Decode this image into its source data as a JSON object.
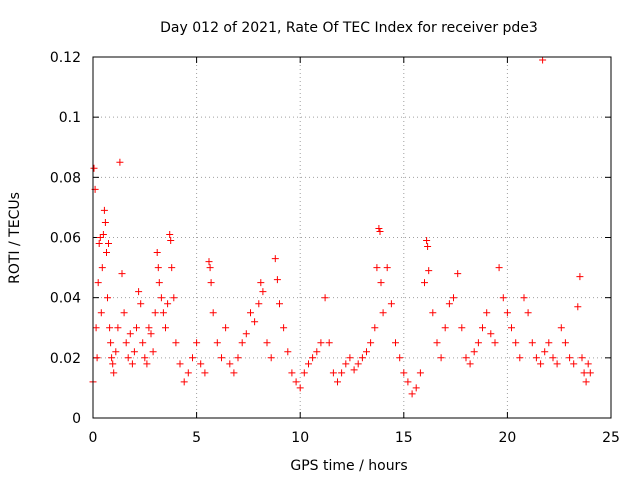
{
  "chart_data": {
    "type": "scatter",
    "title": "Day 012 of 2021, Rate Of TEC Index for receiver pde3",
    "xlabel": "GPS time / hours",
    "ylabel": "ROTI / TECUs",
    "xlim": [
      0,
      25
    ],
    "ylim": [
      0,
      0.12
    ],
    "xticks": [
      0,
      5,
      10,
      15,
      20,
      25
    ],
    "xtick_labels": [
      "0",
      "5",
      "10",
      "15",
      "20",
      "25"
    ],
    "yticks": [
      0,
      0.02,
      0.04,
      0.06,
      0.08,
      0.1,
      0.12
    ],
    "ytick_labels": [
      "0",
      "0.02",
      "0.04",
      "0.06",
      "0.08",
      "0.1",
      "0.12"
    ],
    "grid": true,
    "marker": "+",
    "color": "#ff0000",
    "legend": "none",
    "points": [
      [
        0.0,
        0.012
      ],
      [
        0.05,
        0.083
      ],
      [
        0.1,
        0.076
      ],
      [
        0.15,
        0.03
      ],
      [
        0.2,
        0.02
      ],
      [
        0.25,
        0.045
      ],
      [
        0.3,
        0.058
      ],
      [
        0.35,
        0.06
      ],
      [
        0.4,
        0.035
      ],
      [
        0.45,
        0.05
      ],
      [
        0.5,
        0.061
      ],
      [
        0.55,
        0.069
      ],
      [
        0.6,
        0.065
      ],
      [
        0.65,
        0.055
      ],
      [
        0.7,
        0.04
      ],
      [
        0.75,
        0.058
      ],
      [
        0.8,
        0.03
      ],
      [
        0.85,
        0.025
      ],
      [
        0.9,
        0.02
      ],
      [
        0.95,
        0.018
      ],
      [
        1.0,
        0.015
      ],
      [
        1.1,
        0.022
      ],
      [
        1.2,
        0.03
      ],
      [
        1.3,
        0.085
      ],
      [
        1.4,
        0.048
      ],
      [
        1.5,
        0.035
      ],
      [
        1.6,
        0.025
      ],
      [
        1.7,
        0.02
      ],
      [
        1.8,
        0.028
      ],
      [
        1.9,
        0.018
      ],
      [
        2.0,
        0.022
      ],
      [
        2.1,
        0.03
      ],
      [
        2.2,
        0.042
      ],
      [
        2.3,
        0.038
      ],
      [
        2.4,
        0.025
      ],
      [
        2.5,
        0.02
      ],
      [
        2.6,
        0.018
      ],
      [
        2.7,
        0.03
      ],
      [
        2.8,
        0.028
      ],
      [
        2.9,
        0.022
      ],
      [
        3.0,
        0.035
      ],
      [
        3.1,
        0.055
      ],
      [
        3.15,
        0.05
      ],
      [
        3.2,
        0.045
      ],
      [
        3.3,
        0.04
      ],
      [
        3.4,
        0.035
      ],
      [
        3.5,
        0.03
      ],
      [
        3.6,
        0.038
      ],
      [
        3.7,
        0.061
      ],
      [
        3.75,
        0.059
      ],
      [
        3.8,
        0.05
      ],
      [
        3.9,
        0.04
      ],
      [
        4.0,
        0.025
      ],
      [
        4.2,
        0.018
      ],
      [
        4.4,
        0.012
      ],
      [
        4.6,
        0.015
      ],
      [
        4.8,
        0.02
      ],
      [
        5.0,
        0.025
      ],
      [
        5.2,
        0.018
      ],
      [
        5.4,
        0.015
      ],
      [
        5.6,
        0.052
      ],
      [
        5.65,
        0.05
      ],
      [
        5.7,
        0.045
      ],
      [
        5.8,
        0.035
      ],
      [
        6.0,
        0.025
      ],
      [
        6.2,
        0.02
      ],
      [
        6.4,
        0.03
      ],
      [
        6.6,
        0.018
      ],
      [
        6.8,
        0.015
      ],
      [
        7.0,
        0.02
      ],
      [
        7.2,
        0.025
      ],
      [
        7.4,
        0.028
      ],
      [
        7.6,
        0.035
      ],
      [
        7.8,
        0.032
      ],
      [
        8.0,
        0.038
      ],
      [
        8.1,
        0.045
      ],
      [
        8.2,
        0.042
      ],
      [
        8.4,
        0.025
      ],
      [
        8.6,
        0.02
      ],
      [
        8.8,
        0.053
      ],
      [
        8.9,
        0.046
      ],
      [
        9.0,
        0.038
      ],
      [
        9.2,
        0.03
      ],
      [
        9.4,
        0.022
      ],
      [
        9.6,
        0.015
      ],
      [
        9.8,
        0.012
      ],
      [
        10.0,
        0.01
      ],
      [
        10.2,
        0.015
      ],
      [
        10.4,
        0.018
      ],
      [
        10.6,
        0.02
      ],
      [
        10.8,
        0.022
      ],
      [
        11.0,
        0.025
      ],
      [
        11.2,
        0.04
      ],
      [
        11.4,
        0.025
      ],
      [
        11.6,
        0.015
      ],
      [
        11.8,
        0.012
      ],
      [
        12.0,
        0.015
      ],
      [
        12.2,
        0.018
      ],
      [
        12.4,
        0.02
      ],
      [
        12.6,
        0.016
      ],
      [
        12.8,
        0.018
      ],
      [
        13.0,
        0.02
      ],
      [
        13.2,
        0.022
      ],
      [
        13.4,
        0.025
      ],
      [
        13.6,
        0.03
      ],
      [
        13.7,
        0.05
      ],
      [
        13.8,
        0.063
      ],
      [
        13.85,
        0.062
      ],
      [
        13.9,
        0.045
      ],
      [
        14.0,
        0.035
      ],
      [
        14.2,
        0.05
      ],
      [
        14.4,
        0.038
      ],
      [
        14.6,
        0.025
      ],
      [
        14.8,
        0.02
      ],
      [
        15.0,
        0.015
      ],
      [
        15.2,
        0.012
      ],
      [
        15.4,
        0.008
      ],
      [
        15.6,
        0.01
      ],
      [
        15.8,
        0.015
      ],
      [
        16.0,
        0.045
      ],
      [
        16.1,
        0.059
      ],
      [
        16.15,
        0.057
      ],
      [
        16.2,
        0.049
      ],
      [
        16.4,
        0.035
      ],
      [
        16.6,
        0.025
      ],
      [
        16.8,
        0.02
      ],
      [
        17.0,
        0.03
      ],
      [
        17.2,
        0.038
      ],
      [
        17.4,
        0.04
      ],
      [
        17.6,
        0.048
      ],
      [
        17.8,
        0.03
      ],
      [
        18.0,
        0.02
      ],
      [
        18.2,
        0.018
      ],
      [
        18.4,
        0.022
      ],
      [
        18.6,
        0.025
      ],
      [
        18.8,
        0.03
      ],
      [
        19.0,
        0.035
      ],
      [
        19.2,
        0.028
      ],
      [
        19.4,
        0.025
      ],
      [
        19.6,
        0.05
      ],
      [
        19.8,
        0.04
      ],
      [
        20.0,
        0.035
      ],
      [
        20.2,
        0.03
      ],
      [
        20.4,
        0.025
      ],
      [
        20.6,
        0.02
      ],
      [
        20.8,
        0.04
      ],
      [
        21.0,
        0.035
      ],
      [
        21.2,
        0.025
      ],
      [
        21.4,
        0.02
      ],
      [
        21.6,
        0.018
      ],
      [
        21.7,
        0.119
      ],
      [
        21.8,
        0.022
      ],
      [
        22.0,
        0.025
      ],
      [
        22.2,
        0.02
      ],
      [
        22.4,
        0.018
      ],
      [
        22.6,
        0.03
      ],
      [
        22.8,
        0.025
      ],
      [
        23.0,
        0.02
      ],
      [
        23.2,
        0.018
      ],
      [
        23.4,
        0.037
      ],
      [
        23.5,
        0.047
      ],
      [
        23.6,
        0.02
      ],
      [
        23.7,
        0.015
      ],
      [
        23.8,
        0.012
      ],
      [
        23.9,
        0.018
      ],
      [
        24.0,
        0.015
      ]
    ]
  }
}
